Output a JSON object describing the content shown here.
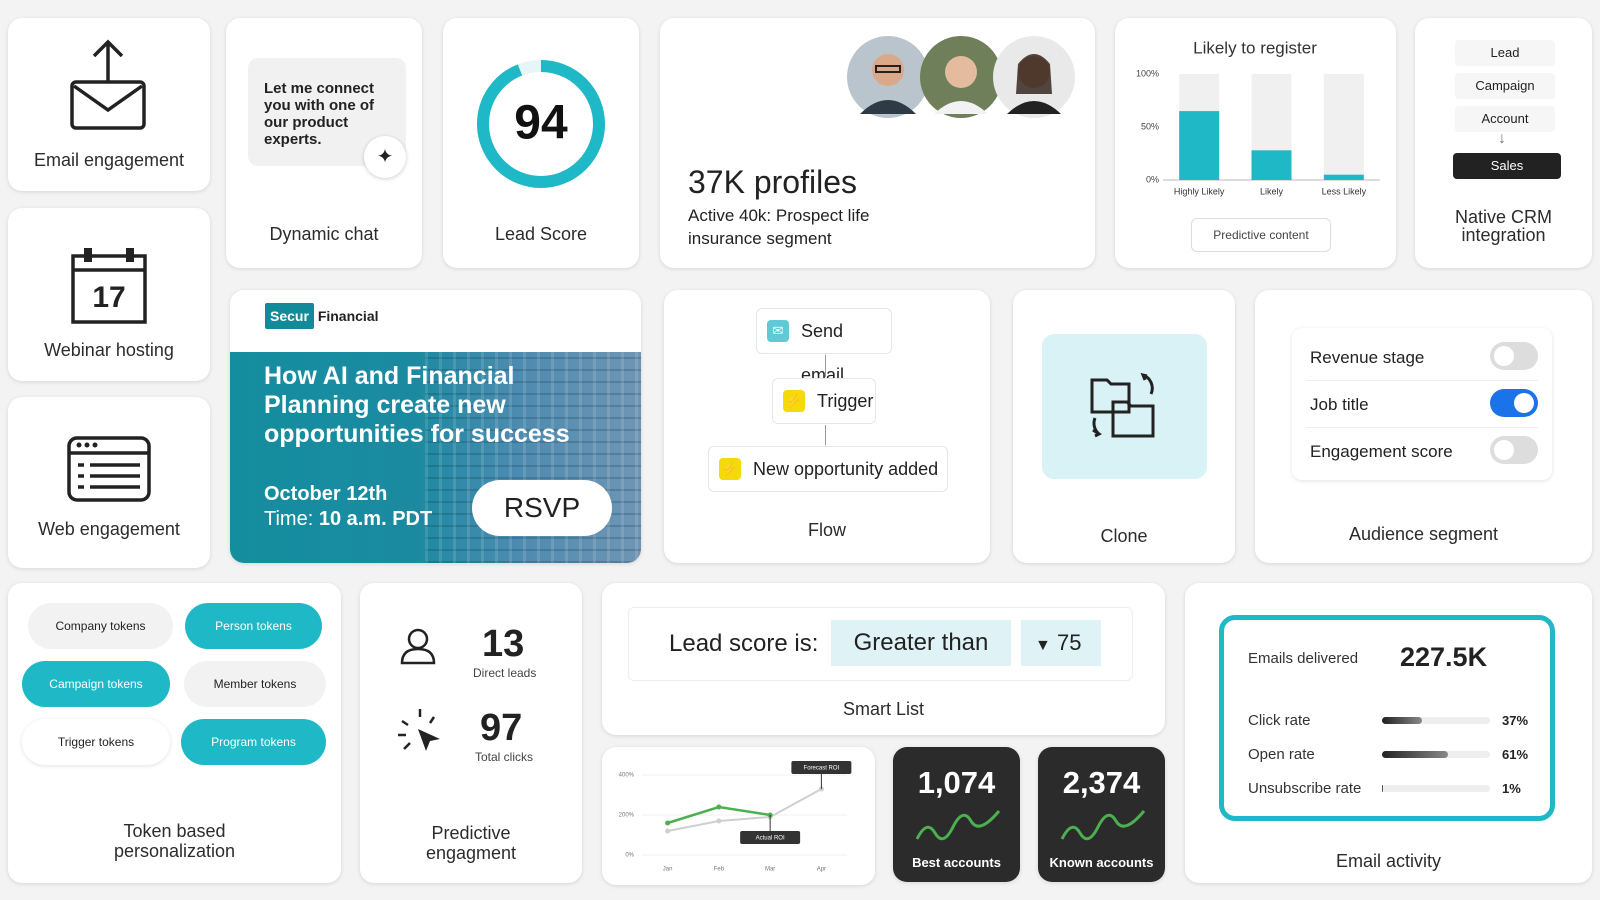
{
  "email_engagement": {
    "label": "Email engagement"
  },
  "dynamic_chat": {
    "message": "Let me connect you with one of our product experts.",
    "label": "Dynamic chat"
  },
  "lead_score": {
    "score": 94,
    "label": "Lead Score"
  },
  "profiles": {
    "headline": "37K profiles",
    "description": "Active 40k: Prospect life insurance segment"
  },
  "register_chart": {
    "type": "bar",
    "title": "Likely to register",
    "categories": [
      "Highly Likely",
      "Likely",
      "Less Likely"
    ],
    "values": [
      65,
      28,
      5
    ],
    "color": "#1fb8c6",
    "ylim": [
      0,
      100
    ],
    "yticks": [
      {
        "value": 0,
        "label": "0%"
      },
      {
        "value": 50,
        "label": "50%"
      },
      {
        "value": 100,
        "label": "100%"
      }
    ],
    "button": "Predictive content"
  },
  "crm": {
    "items": [
      {
        "label": "Lead",
        "active": false
      },
      {
        "label": "Campaign",
        "active": false
      },
      {
        "label": "Account",
        "active": false
      },
      {
        "label": "Sales",
        "active": true
      }
    ],
    "label": "Native CRM integration"
  },
  "webinar": {
    "day": "17",
    "label": "Webinar hosting"
  },
  "web_engagement": {
    "label": "Web engagement"
  },
  "banner": {
    "brand": "Secur",
    "brand_suffix": "Financial",
    "headline": "How AI and Financial Planning create new opportunities for success",
    "date": "October 12th",
    "time_label": "Time:",
    "time": "10 a.m. PDT",
    "button": "RSVP"
  },
  "flow": {
    "steps": [
      "Send email",
      "Trigger",
      "New opportunity added"
    ],
    "label": "Flow"
  },
  "clone": {
    "label": "Clone"
  },
  "audience": {
    "fields": [
      {
        "label": "Revenue stage",
        "on": false
      },
      {
        "label": "Job title",
        "on": true
      },
      {
        "label": "Engagement score",
        "on": false
      }
    ],
    "label": "Audience segment"
  },
  "tokens": {
    "items": [
      {
        "label": "Company tokens",
        "active": false
      },
      {
        "label": "Person tokens",
        "active": true
      },
      {
        "label": "Campaign tokens",
        "active": true
      },
      {
        "label": "Member tokens",
        "active": false
      },
      {
        "label": "Trigger tokens",
        "active": false
      },
      {
        "label": "Program tokens",
        "active": true
      }
    ],
    "label": "Token based personalization"
  },
  "predictive": {
    "direct_leads": "13",
    "direct_leads_label": "Direct leads",
    "total_clicks": "97",
    "total_clicks_label": "Total clicks",
    "label": "Predictive engagment"
  },
  "smart_list": {
    "prefix": "Lead score is:",
    "operator": "Greater than",
    "value": "75",
    "label": "Smart List"
  },
  "roi_chart": {
    "type": "line",
    "categories": [
      "Jan",
      "Feb",
      "Mar",
      "Apr"
    ],
    "series": [
      {
        "name": "Forecast ROI",
        "color": "#cfcfcf",
        "values": [
          120,
          170,
          190,
          330
        ]
      },
      {
        "name": "Actual ROI",
        "color": "#4caf50",
        "values": [
          160,
          240,
          200,
          null
        ]
      }
    ],
    "ylim": [
      0,
      400
    ],
    "yticks": [
      {
        "value": 0,
        "label": "0%"
      },
      {
        "value": 200,
        "label": "200%"
      },
      {
        "value": 400,
        "label": "400%"
      }
    ]
  },
  "best_accounts": {
    "count": "1,074",
    "label": "Best accounts"
  },
  "known_accounts": {
    "count": "2,374",
    "label": "Known accounts"
  },
  "email_activity": {
    "delivered_label": "Emails delivered",
    "delivered": "227.5K",
    "rates": [
      {
        "label": "Click rate",
        "value": 37,
        "value_label": "37%"
      },
      {
        "label": "Open rate",
        "value": 61,
        "value_label": "61%"
      },
      {
        "label": "Unsubscribe rate",
        "value": 1,
        "value_label": "1%"
      }
    ],
    "label": "Email activity"
  }
}
